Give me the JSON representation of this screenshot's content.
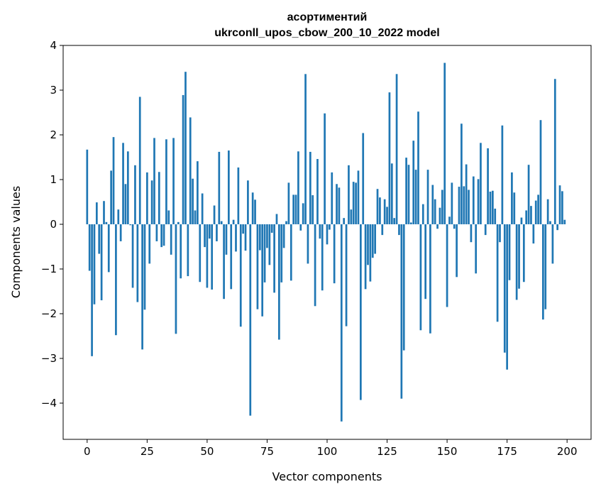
{
  "chart_data": {
    "type": "bar",
    "title": [
      "асортиментий",
      "ukrconll_upos_cbow_200_10_2022 model"
    ],
    "xlabel": "Vector components",
    "ylabel": "Components values",
    "xlim": [
      -10,
      210
    ],
    "ylim": [
      -4.81,
      4.0
    ],
    "xticks": [
      0,
      25,
      50,
      75,
      100,
      125,
      150,
      175,
      200
    ],
    "xtick_labels": [
      "0",
      "25",
      "50",
      "75",
      "100",
      "125",
      "150",
      "175",
      "200"
    ],
    "yticks": [
      -4,
      -3,
      -2,
      -1,
      0,
      1,
      2,
      3,
      4
    ],
    "ytick_labels": [
      "−4",
      "−3",
      "−2",
      "−1",
      "0",
      "1",
      "2",
      "3",
      "4"
    ],
    "grid": false,
    "bar_width": 0.8,
    "color": "#1f77b4",
    "values": [
      1.67,
      -1.04,
      -2.95,
      -1.79,
      0.49,
      -0.66,
      -1.7,
      0.52,
      0.05,
      -1.07,
      1.2,
      1.95,
      -2.48,
      0.33,
      -0.38,
      1.82,
      0.9,
      1.63,
      -0.02,
      -1.42,
      1.32,
      -1.74,
      2.85,
      -2.8,
      -1.91,
      1.16,
      -0.88,
      0.98,
      1.93,
      -0.38,
      1.17,
      -0.51,
      -0.48,
      1.9,
      0.31,
      -0.68,
      1.93,
      -2.45,
      0.05,
      -1.21,
      2.89,
      3.41,
      -1.16,
      2.39,
      1.02,
      0.31,
      1.41,
      -1.29,
      0.69,
      -0.51,
      -1.42,
      -0.32,
      -1.46,
      0.42,
      -0.38,
      1.62,
      0.07,
      -1.67,
      -0.68,
      1.65,
      -1.45,
      0.1,
      -0.61,
      1.27,
      -2.29,
      -0.21,
      -0.59,
      0.98,
      -4.28,
      0.71,
      0.55,
      -1.9,
      -0.58,
      -2.06,
      -1.3,
      -0.53,
      -0.91,
      -0.19,
      -1.53,
      0.23,
      -2.58,
      -1.3,
      -0.53,
      0.07,
      0.93,
      -1.26,
      0.66,
      0.66,
      1.63,
      -0.14,
      0.47,
      3.36,
      -0.88,
      1.62,
      0.65,
      -1.83,
      1.46,
      -0.32,
      -1.48,
      2.48,
      -0.45,
      -0.12,
      1.16,
      -1.32,
      0.9,
      0.82,
      -4.41,
      0.14,
      -2.28,
      1.32,
      0.33,
      0.95,
      0.93,
      1.2,
      -3.93,
      2.04,
      -1.45,
      -0.91,
      -1.28,
      -0.75,
      -0.66,
      0.79,
      0.6,
      -0.24,
      0.56,
      0.39,
      2.95,
      1.36,
      0.14,
      3.36,
      -0.24,
      -3.9,
      -2.82,
      1.49,
      1.33,
      0.04,
      1.87,
      1.22,
      2.52,
      -2.37,
      0.45,
      -1.67,
      1.22,
      -2.44,
      0.88,
      0.56,
      -0.1,
      0.37,
      0.77,
      3.61,
      -1.85,
      0.17,
      0.93,
      -0.1,
      -1.18,
      0.84,
      2.25,
      0.85,
      1.34,
      0.77,
      -0.4,
      1.07,
      -1.1,
      1.01,
      1.82,
      0.0,
      -0.24,
      1.7,
      0.73,
      0.75,
      0.35,
      -2.18,
      -0.4,
      2.21,
      -2.87,
      -3.25,
      -1.25,
      1.16,
      0.71,
      -1.69,
      -1.44,
      0.15,
      -1.29,
      0.31,
      1.33,
      0.41,
      -0.43,
      0.53,
      0.66,
      2.33,
      -2.13,
      -1.9,
      0.56,
      0.07,
      -0.88,
      3.25,
      -0.13,
      0.87,
      0.74,
      0.1
    ]
  }
}
